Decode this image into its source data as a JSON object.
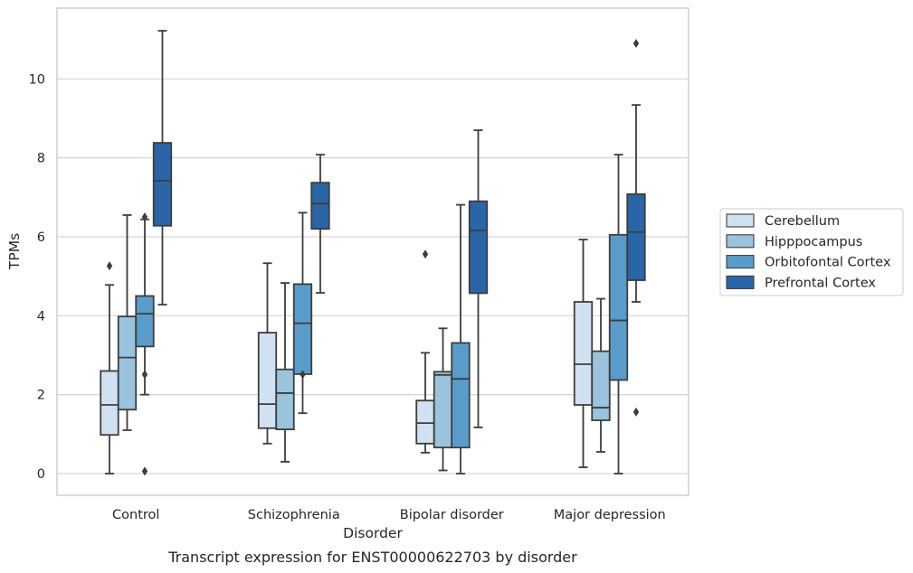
{
  "caption": "Transcript expression for ENST00000622703 by disorder",
  "chart_data": {
    "type": "box",
    "title": "",
    "xlabel": "Disorder",
    "ylabel": "TPMs",
    "ylim": [
      -0.55,
      11.8
    ],
    "yticks": [
      0,
      2,
      4,
      6,
      8,
      10
    ],
    "grid": "horizontal",
    "legend_position": "right",
    "categories": [
      "Control",
      "Schizophrenia",
      "Bipolar disorder",
      "Major depression"
    ],
    "series": [
      {
        "name": "Cerebellum",
        "color": "#d0e1f2",
        "boxes": [
          {
            "whislo": 0.0,
            "q1": 0.98,
            "median": 1.74,
            "q3": 2.6,
            "whishi": 4.78,
            "fliers": [
              5.26
            ]
          },
          {
            "whislo": 0.76,
            "q1": 1.15,
            "median": 1.76,
            "q3": 3.57,
            "whishi": 5.33,
            "fliers": []
          },
          {
            "whislo": 0.53,
            "q1": 0.76,
            "median": 1.28,
            "q3": 1.85,
            "whishi": 3.06,
            "fliers": [
              5.56
            ]
          },
          {
            "whislo": 0.16,
            "q1": 1.74,
            "median": 2.77,
            "q3": 4.35,
            "whishi": 5.93,
            "fliers": []
          }
        ]
      },
      {
        "name": "Hipppocampus",
        "color": "#9ac3dd",
        "boxes": [
          {
            "whislo": 1.1,
            "q1": 1.62,
            "median": 2.94,
            "q3": 3.98,
            "whishi": 6.55,
            "fliers": []
          },
          {
            "whislo": 0.3,
            "q1": 1.12,
            "median": 2.04,
            "q3": 2.64,
            "whishi": 4.83,
            "fliers": []
          },
          {
            "whislo": 0.08,
            "q1": 0.66,
            "median": 2.5,
            "q3": 2.58,
            "whishi": 3.68,
            "fliers": []
          },
          {
            "whislo": 0.55,
            "q1": 1.35,
            "median": 1.67,
            "q3": 3.1,
            "whishi": 4.43,
            "fliers": []
          }
        ]
      },
      {
        "name": "Orbitofontal Cortex",
        "color": "#5a9cc9",
        "boxes": [
          {
            "whislo": 2.0,
            "q1": 3.22,
            "median": 4.05,
            "q3": 4.5,
            "whishi": 6.44,
            "fliers": [
              6.5,
              2.51,
              0.06
            ]
          },
          {
            "whislo": 1.53,
            "q1": 2.52,
            "median": 3.81,
            "q3": 4.8,
            "whishi": 6.61,
            "fliers": [
              2.51
            ]
          },
          {
            "whislo": 0.0,
            "q1": 0.66,
            "median": 2.4,
            "q3": 3.31,
            "whishi": 6.81,
            "fliers": []
          },
          {
            "whislo": 0.0,
            "q1": 2.37,
            "median": 3.88,
            "q3": 6.05,
            "whishi": 8.08,
            "fliers": []
          }
        ]
      },
      {
        "name": "Prefrontal Cortex",
        "color": "#2a65a7",
        "boxes": [
          {
            "whislo": 4.28,
            "q1": 6.28,
            "median": 7.42,
            "q3": 8.38,
            "whishi": 11.22,
            "fliers": []
          },
          {
            "whislo": 4.58,
            "q1": 6.2,
            "median": 6.84,
            "q3": 7.37,
            "whishi": 8.08,
            "fliers": []
          },
          {
            "whislo": 1.17,
            "q1": 4.57,
            "median": 6.16,
            "q3": 6.9,
            "whishi": 8.7,
            "fliers": []
          },
          {
            "whislo": 4.35,
            "q1": 4.9,
            "median": 6.12,
            "q3": 7.08,
            "whishi": 9.34,
            "fliers": [
              1.56,
              10.9
            ]
          }
        ]
      }
    ]
  }
}
